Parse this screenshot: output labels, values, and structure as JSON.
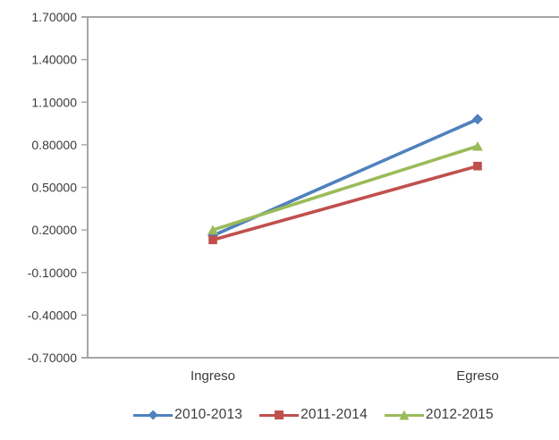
{
  "chart_data": {
    "type": "line",
    "title": "",
    "xlabel": "",
    "ylabel": "",
    "categories": [
      "Ingreso",
      "Egreso"
    ],
    "series": [
      {
        "name": "2010-2013",
        "marker": "diamond",
        "color": "#4F81BD",
        "values": [
          0.16,
          0.98
        ]
      },
      {
        "name": "2011-2014",
        "marker": "square",
        "color": "#C0504D",
        "values": [
          0.13,
          0.65
        ]
      },
      {
        "name": "2012-2015",
        "marker": "triangle",
        "color": "#9BBB59",
        "values": [
          0.2,
          0.79
        ]
      }
    ],
    "ylim": [
      -0.7,
      1.7
    ],
    "ytick_step": 0.3,
    "ytick_labels": [
      "1.70000",
      "1.40000",
      "1.10000",
      "0.80000",
      "0.50000",
      "0.20000",
      "-0.10000",
      "-0.40000",
      "-0.70000"
    ],
    "grid": "top-and-bottom-border-only",
    "legend_position": "bottom",
    "axis_color": "#A6A6A6",
    "text_color": "#3B3B3B",
    "background": "#FFFFFF"
  }
}
